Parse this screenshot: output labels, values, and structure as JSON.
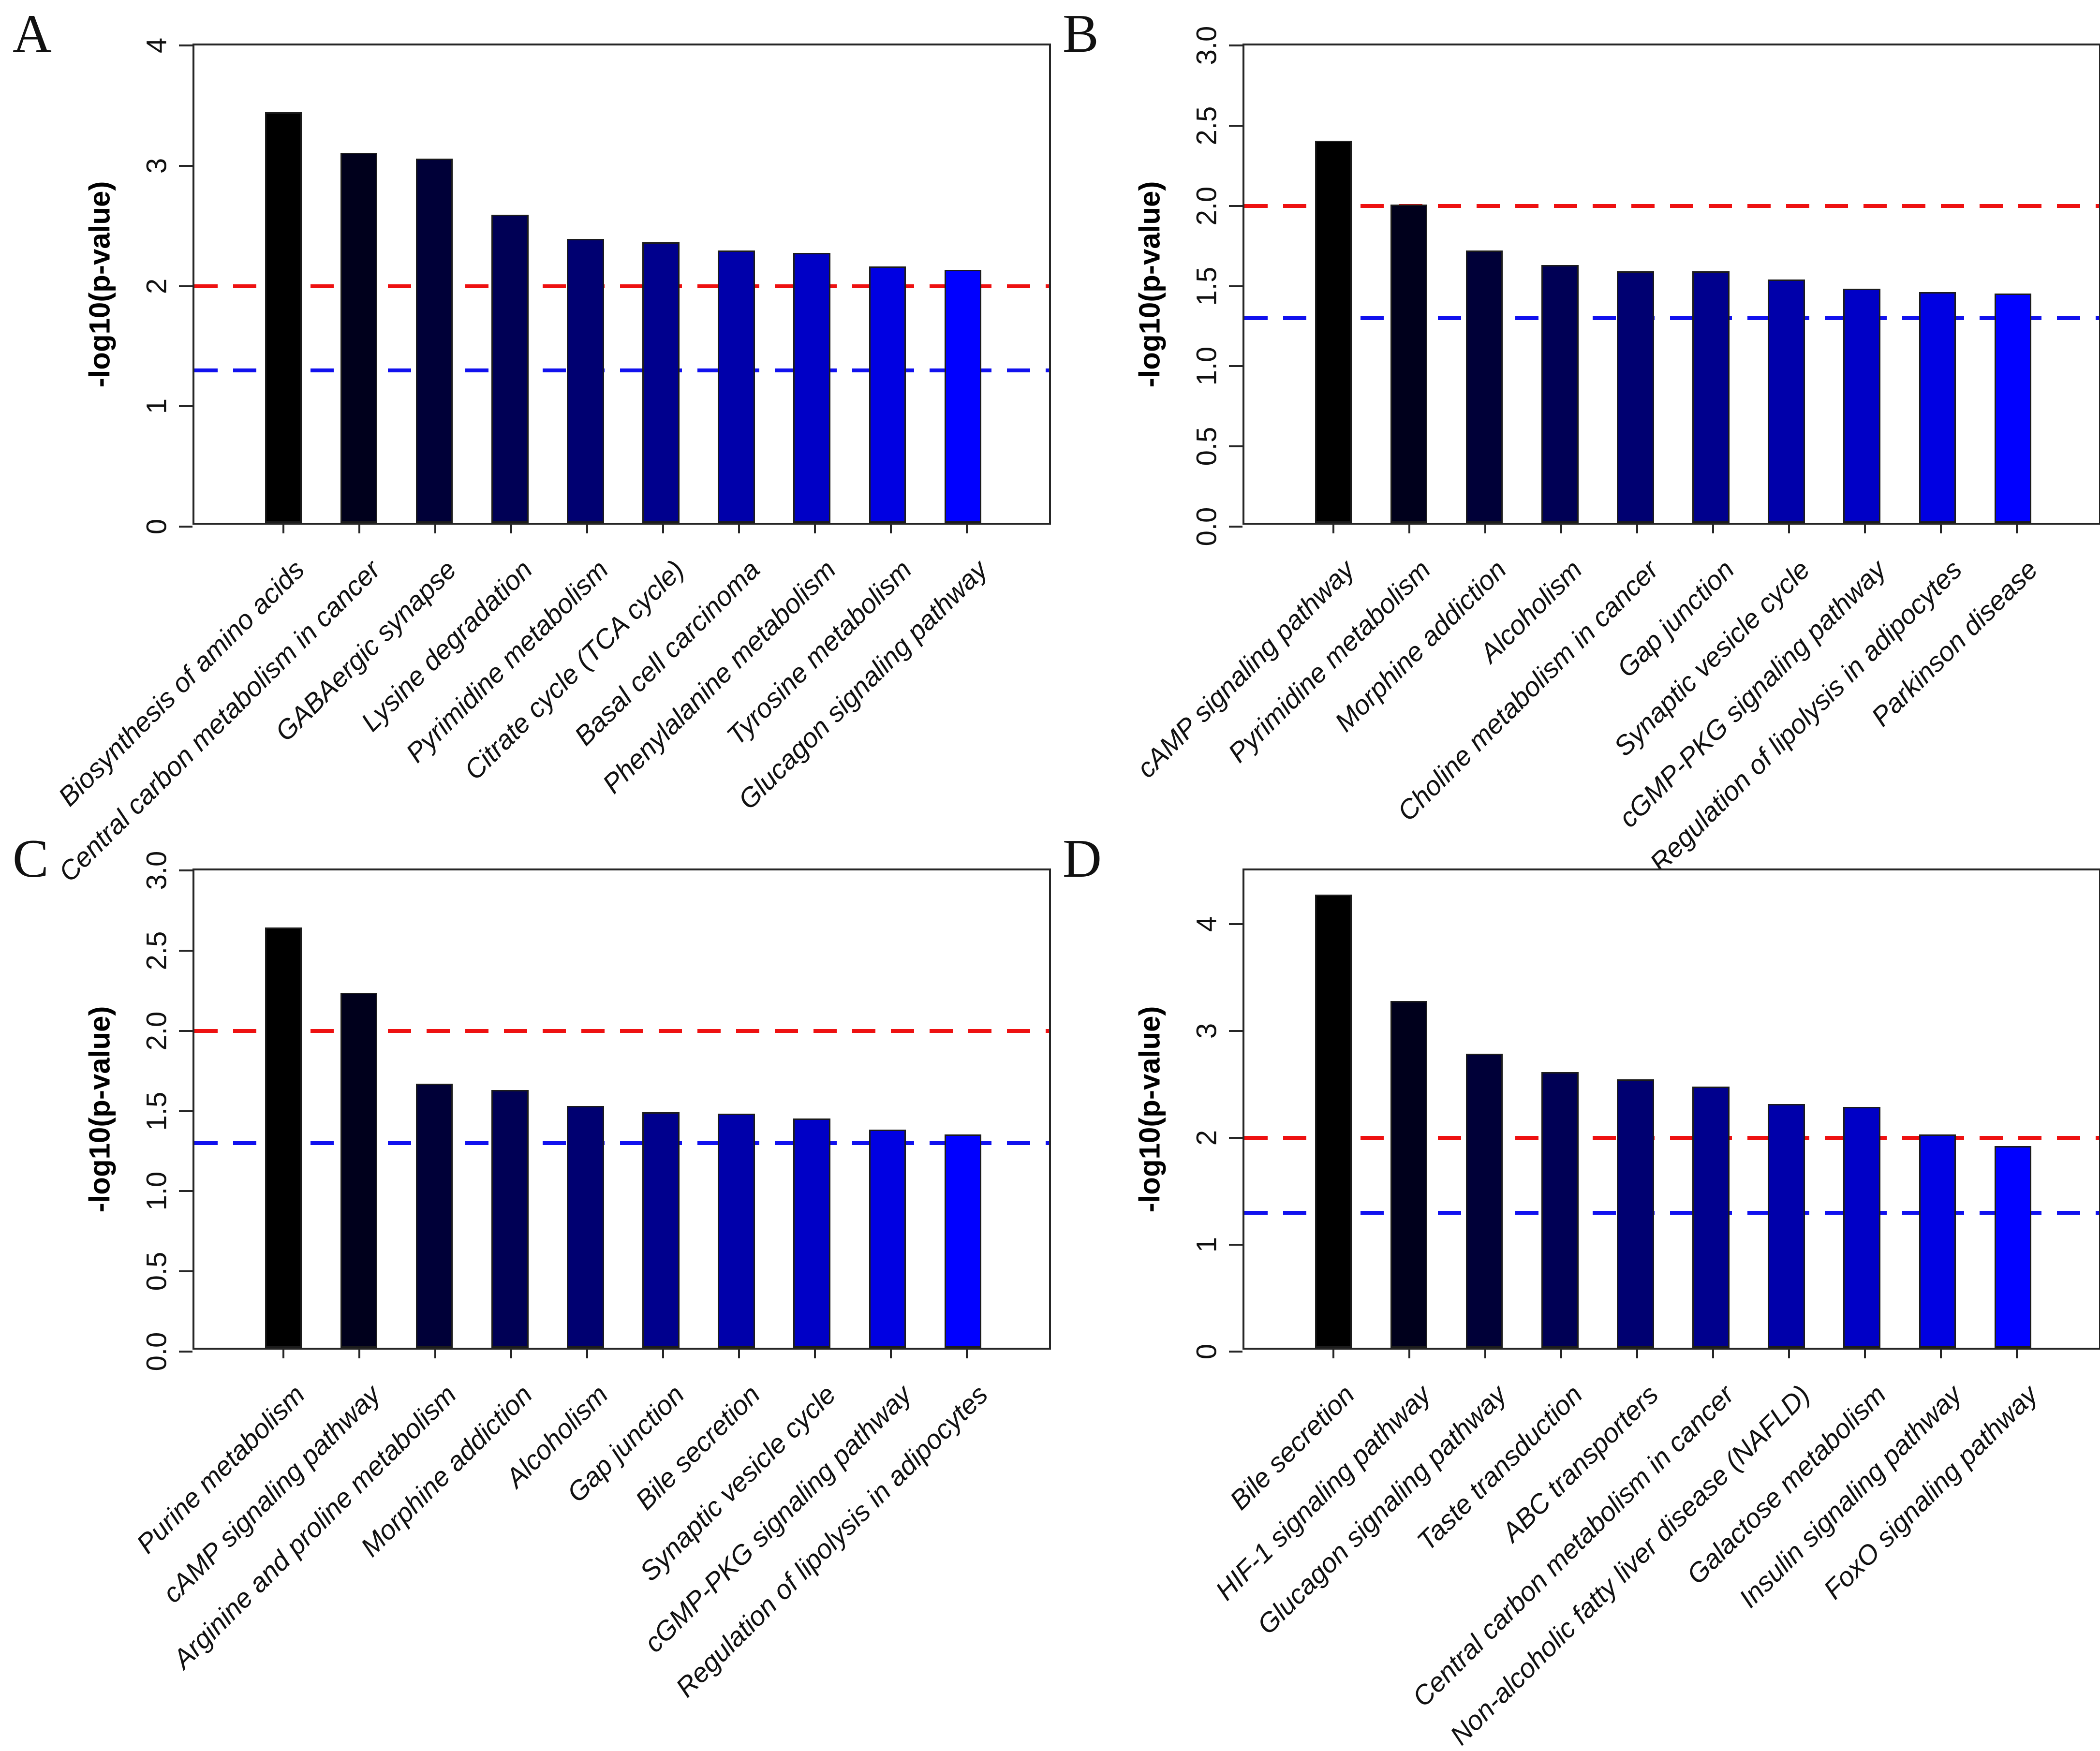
{
  "figure": {
    "ylabel": "-log10(p-value)",
    "red_threshold": 2.0,
    "blue_threshold": 1.3,
    "red_line_color": "#ee1111",
    "blue_line_color": "#1111ee",
    "bar_colors": [
      "#000000",
      "#00001C",
      "#000038",
      "#000055",
      "#000071",
      "#00008D",
      "#0000AA",
      "#0000C6",
      "#0000E2",
      "#0000FF"
    ],
    "background": "#ffffff"
  },
  "chart_data": [
    {
      "panel": "A",
      "type": "bar",
      "ylabel": "-log10(p-value)",
      "ylim": [
        0,
        4
      ],
      "yticks": [
        "0",
        "1",
        "2",
        "3",
        "4"
      ],
      "grid": false,
      "legend": null,
      "hlines": [
        {
          "y": 2.0,
          "color": "#ee1111",
          "style": "dashed"
        },
        {
          "y": 1.3,
          "color": "#1111ee",
          "style": "dashed"
        }
      ],
      "categories": [
        "Biosynthesis of amino acids",
        "Central carbon metabolism in cancer",
        "GABAergic synapse",
        "Lysine degradation",
        "Pyrimidine metabolism",
        "Citrate cycle (TCA cycle)",
        "Basal cell carcinoma",
        "Phenylalanine metabolism",
        "Tyrosine metabolism",
        "Glucagon signaling pathway"
      ],
      "values": [
        3.44,
        3.1,
        3.05,
        2.58,
        2.38,
        2.35,
        2.28,
        2.26,
        2.15,
        2.12
      ]
    },
    {
      "panel": "B",
      "type": "bar",
      "ylabel": "-log10(p-value)",
      "ylim": [
        0,
        3
      ],
      "yticks": [
        "0.0",
        "0.5",
        "1.0",
        "1.5",
        "2.0",
        "2.5",
        "3.0"
      ],
      "grid": false,
      "legend": null,
      "hlines": [
        {
          "y": 2.0,
          "color": "#ee1111",
          "style": "dashed"
        },
        {
          "y": 1.3,
          "color": "#1111ee",
          "style": "dashed"
        }
      ],
      "categories": [
        "cAMP signaling pathway",
        "Pyrimidine metabolism",
        "Morphine addiction",
        "Alcoholism",
        "Choline metabolism in cancer",
        "Gap junction",
        "Synaptic vesicle cycle",
        "cGMP-PKG signaling pathway",
        "Regulation of lipolysis in adipocytes",
        "Parkinson disease"
      ],
      "values": [
        2.4,
        2.0,
        1.71,
        1.62,
        1.58,
        1.58,
        1.53,
        1.47,
        1.45,
        1.44
      ]
    },
    {
      "panel": "C",
      "type": "bar",
      "ylabel": "-log10(p-value)",
      "ylim": [
        0,
        3
      ],
      "yticks": [
        "0.0",
        "0.5",
        "1.0",
        "1.5",
        "2.0",
        "2.5",
        "3.0"
      ],
      "grid": false,
      "legend": null,
      "hlines": [
        {
          "y": 2.0,
          "color": "#ee1111",
          "style": "dashed"
        },
        {
          "y": 1.3,
          "color": "#1111ee",
          "style": "dashed"
        }
      ],
      "categories": [
        "Purine metabolism",
        "cAMP signaling pathway",
        "Arginine and proline metabolism",
        "Morphine addiction",
        "Alcoholism",
        "Gap junction",
        "Bile secretion",
        "Synaptic vesicle cycle",
        "cGMP-PKG signaling pathway",
        "Regulation of lipolysis in adipocytes"
      ],
      "values": [
        2.64,
        2.23,
        1.66,
        1.62,
        1.52,
        1.48,
        1.47,
        1.44,
        1.37,
        1.34
      ]
    },
    {
      "panel": "D",
      "type": "bar",
      "ylabel": "-log10(p-value)",
      "ylim": [
        0,
        4.5
      ],
      "yticks": [
        "0",
        "1",
        "2",
        "3",
        "4"
      ],
      "grid": false,
      "legend": null,
      "hlines": [
        {
          "y": 2.0,
          "color": "#ee1111",
          "style": "dashed"
        },
        {
          "y": 1.3,
          "color": "#1111ee",
          "style": "dashed"
        }
      ],
      "categories": [
        "Bile secretion",
        "HIF-1 signaling pathway",
        "Glucagon signaling pathway",
        "Taste transduction",
        "ABC transporters",
        "Central carbon metabolism in cancer",
        "Non-alcoholic fatty liver disease (NAFLD)",
        "Galactose metabolism",
        "Insulin signaling pathway",
        "FoxO signaling pathway"
      ],
      "values": [
        4.27,
        3.27,
        2.77,
        2.6,
        2.53,
        2.46,
        2.3,
        2.27,
        2.01,
        1.9
      ]
    }
  ]
}
